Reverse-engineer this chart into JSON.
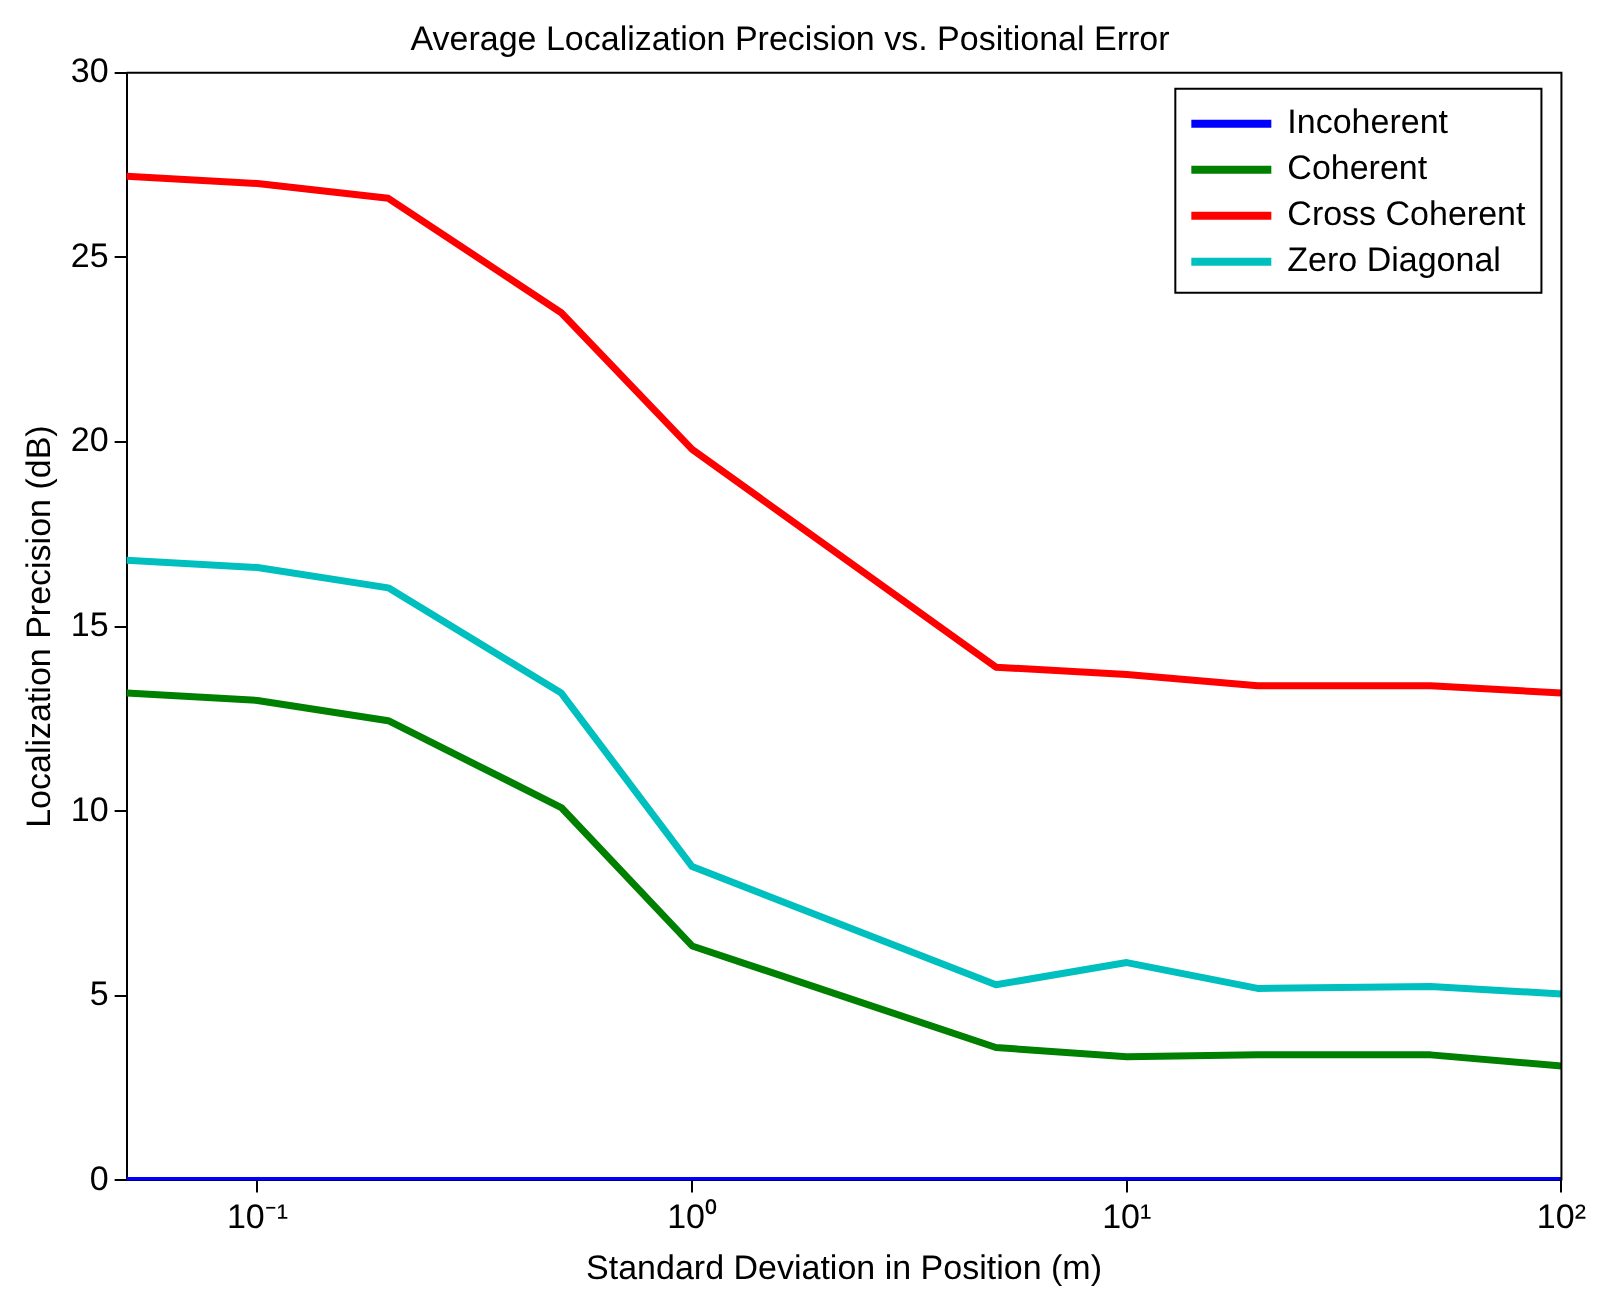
{
  "chart_data": {
    "type": "line",
    "title": "Average Localization Precision vs. Positional Error",
    "xlabel": "Standard Deviation in Position (m)",
    "ylabel": "Localization Precision (dB)",
    "x": [
      0.05,
      0.1,
      0.2,
      0.5,
      1,
      5,
      10,
      20,
      50,
      100
    ],
    "series": [
      {
        "name": "Incoherent",
        "color": "#0000ff",
        "values": [
          0,
          0,
          0,
          0,
          0,
          0,
          0,
          0,
          0,
          0
        ]
      },
      {
        "name": "Coherent",
        "color": "#008000",
        "values": [
          13.2,
          13.0,
          12.45,
          10.1,
          6.35,
          3.6,
          3.35,
          3.4,
          3.4,
          3.1
        ]
      },
      {
        "name": "Cross Coherent",
        "color": "#ff0000",
        "values": [
          27.2,
          27.0,
          26.6,
          23.5,
          19.8,
          13.9,
          13.7,
          13.4,
          13.4,
          13.2
        ]
      },
      {
        "name": "Zero Diagonal",
        "color": "#00bfbf",
        "values": [
          16.8,
          16.6,
          16.05,
          13.2,
          8.5,
          5.3,
          5.9,
          5.2,
          5.25,
          5.05
        ]
      }
    ],
    "log": "x",
    "xlim": [
      0.05,
      100
    ],
    "xticks": [
      {
        "value": 0.1,
        "label": "10⁻¹"
      },
      {
        "value": 1,
        "label": "10⁰"
      },
      {
        "value": 10,
        "label": "10¹"
      },
      {
        "value": 100,
        "label": "10²"
      }
    ],
    "ylim": [
      0,
      30
    ],
    "yticks": [
      0,
      5,
      10,
      15,
      20,
      25,
      30
    ],
    "grid": false,
    "legend": "top right",
    "marker": "none",
    "line_style": "solid"
  }
}
